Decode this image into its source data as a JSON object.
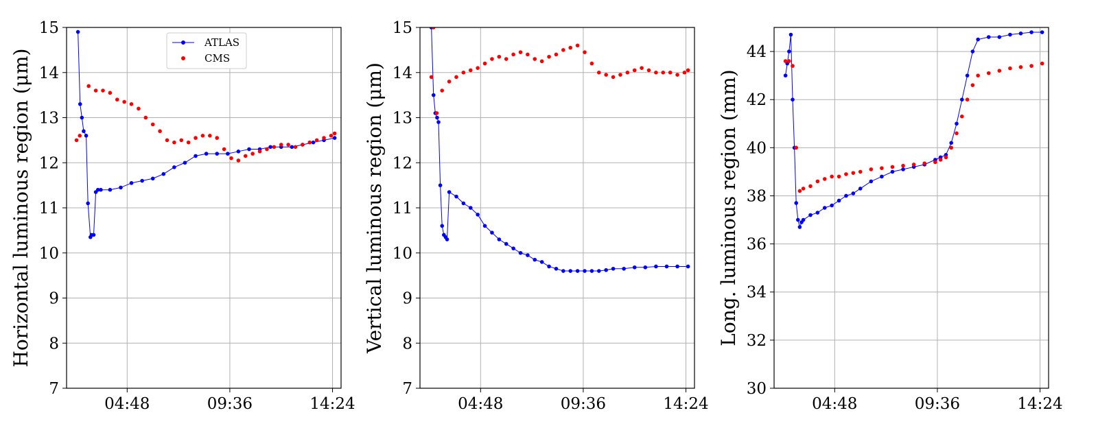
{
  "chart_data": [
    {
      "type": "scatter",
      "ylabel": "Horizontal luminous region (μm)",
      "xlim": [
        "01:58",
        "14:48"
      ],
      "ylim": [
        7,
        15
      ],
      "xticks": [
        "04:48",
        "09:36",
        "14:24"
      ],
      "yticks": [
        "7",
        "8",
        "9",
        "10",
        "11",
        "12",
        "13",
        "14",
        "15"
      ],
      "grid": true,
      "legend": {
        "placement": "top-center",
        "entries": [
          "ATLAS",
          "CMS"
        ]
      },
      "series": [
        {
          "name": "ATLAS",
          "color": "#0000ff",
          "marker": "dot",
          "line": true,
          "x": [
            "02:30",
            "02:36",
            "02:41",
            "02:46",
            "02:53",
            "02:58",
            "03:05",
            "03:08",
            "03:14",
            "03:20",
            "03:26",
            "03:34",
            "04:00",
            "04:30",
            "05:00",
            "05:30",
            "06:00",
            "06:30",
            "07:00",
            "07:30",
            "08:00",
            "08:30",
            "09:00",
            "09:30",
            "10:00",
            "10:30",
            "11:00",
            "11:30",
            "12:00",
            "12:30",
            "13:00",
            "13:30",
            "14:00",
            "14:30"
          ],
          "y": [
            14.9,
            13.3,
            13.0,
            12.7,
            12.6,
            11.1,
            10.35,
            10.4,
            10.4,
            11.35,
            11.4,
            11.4,
            11.4,
            11.45,
            11.55,
            11.6,
            11.65,
            11.75,
            11.9,
            12.0,
            12.15,
            12.2,
            12.2,
            12.2,
            12.25,
            12.3,
            12.3,
            12.35,
            12.35,
            12.35,
            12.4,
            12.45,
            12.5,
            12.55
          ]
        },
        {
          "name": "CMS",
          "color": "#ff0000",
          "marker": "dot",
          "line": false,
          "x": [
            "02:26",
            "02:35",
            "03:00",
            "03:20",
            "03:40",
            "04:00",
            "04:20",
            "04:40",
            "05:00",
            "05:20",
            "05:40",
            "06:00",
            "06:20",
            "06:40",
            "07:00",
            "07:20",
            "07:40",
            "08:00",
            "08:20",
            "08:40",
            "09:00",
            "09:20",
            "09:40",
            "10:00",
            "10:20",
            "10:40",
            "11:00",
            "11:20",
            "11:40",
            "12:00",
            "12:20",
            "12:40",
            "13:00",
            "13:20",
            "13:40",
            "14:00",
            "14:20",
            "14:30"
          ],
          "y": [
            12.5,
            12.6,
            13.7,
            13.6,
            13.6,
            13.55,
            13.4,
            13.35,
            13.3,
            13.2,
            13.0,
            12.85,
            12.7,
            12.5,
            12.45,
            12.5,
            12.45,
            12.55,
            12.6,
            12.6,
            12.55,
            12.3,
            12.1,
            12.05,
            12.15,
            12.2,
            12.25,
            12.3,
            12.35,
            12.4,
            12.4,
            12.35,
            12.4,
            12.45,
            12.5,
            12.55,
            12.6,
            12.65
          ]
        }
      ]
    },
    {
      "type": "scatter",
      "ylabel": "Vertical luminous region (μm)",
      "xlim": [
        "01:58",
        "14:48"
      ],
      "ylim": [
        7,
        15
      ],
      "xticks": [
        "04:48",
        "09:36",
        "14:24"
      ],
      "yticks": [
        "7",
        "8",
        "9",
        "10",
        "11",
        "12",
        "13",
        "14",
        "15"
      ],
      "grid": true,
      "series": [
        {
          "name": "ATLAS",
          "color": "#0000ff",
          "marker": "dot",
          "line": true,
          "x": [
            "02:30",
            "02:36",
            "02:41",
            "02:46",
            "02:50",
            "02:55",
            "03:00",
            "03:05",
            "03:10",
            "03:14",
            "03:20",
            "03:40",
            "04:00",
            "04:20",
            "04:40",
            "05:00",
            "05:20",
            "05:40",
            "06:00",
            "06:20",
            "06:40",
            "07:00",
            "07:20",
            "07:40",
            "08:00",
            "08:20",
            "08:40",
            "09:00",
            "09:20",
            "09:40",
            "10:00",
            "10:20",
            "10:40",
            "11:00",
            "11:30",
            "12:00",
            "12:30",
            "13:00",
            "13:30",
            "14:00",
            "14:30"
          ],
          "y": [
            15.0,
            13.5,
            13.1,
            13.0,
            12.9,
            11.5,
            10.6,
            10.4,
            10.35,
            10.3,
            11.35,
            11.25,
            11.1,
            11.0,
            10.85,
            10.6,
            10.45,
            10.3,
            10.2,
            10.1,
            10.0,
            9.95,
            9.85,
            9.8,
            9.7,
            9.65,
            9.6,
            9.6,
            9.6,
            9.6,
            9.6,
            9.6,
            9.62,
            9.65,
            9.65,
            9.68,
            9.68,
            9.7,
            9.7,
            9.7,
            9.7
          ]
        },
        {
          "name": "CMS",
          "color": "#ff0000",
          "marker": "dot",
          "line": false,
          "x": [
            "02:30",
            "02:36",
            "02:45",
            "03:00",
            "03:20",
            "03:40",
            "04:00",
            "04:20",
            "04:40",
            "05:00",
            "05:20",
            "05:40",
            "06:00",
            "06:20",
            "06:40",
            "07:00",
            "07:20",
            "07:40",
            "08:00",
            "08:20",
            "08:40",
            "09:00",
            "09:20",
            "09:40",
            "10:00",
            "10:20",
            "10:40",
            "11:00",
            "11:20",
            "11:40",
            "12:00",
            "12:20",
            "12:40",
            "13:00",
            "13:20",
            "13:40",
            "14:00",
            "14:20",
            "14:30"
          ],
          "y": [
            13.9,
            15.0,
            13.1,
            13.6,
            13.8,
            13.9,
            14.0,
            14.05,
            14.1,
            14.2,
            14.3,
            14.35,
            14.3,
            14.4,
            14.45,
            14.4,
            14.3,
            14.25,
            14.35,
            14.4,
            14.5,
            14.55,
            14.6,
            14.45,
            14.2,
            14.0,
            13.95,
            13.9,
            13.95,
            14.0,
            14.05,
            14.1,
            14.05,
            14.0,
            14.0,
            14.0,
            13.95,
            14.0,
            14.05
          ]
        }
      ]
    },
    {
      "type": "scatter",
      "ylabel": "Long. luminous region (mm)",
      "xlim": [
        "01:58",
        "14:48"
      ],
      "ylim": [
        30,
        45
      ],
      "xticks": [
        "04:48",
        "09:36",
        "14:24"
      ],
      "yticks": [
        "30",
        "32",
        "34",
        "36",
        "38",
        "40",
        "42",
        "44"
      ],
      "grid": true,
      "series": [
        {
          "name": "ATLAS",
          "color": "#0000ff",
          "marker": "dot",
          "line": true,
          "x": [
            "02:30",
            "02:35",
            "02:40",
            "02:45",
            "02:50",
            "02:55",
            "03:00",
            "03:05",
            "03:10",
            "03:15",
            "03:20",
            "03:40",
            "04:00",
            "04:20",
            "04:40",
            "05:00",
            "05:20",
            "05:40",
            "06:00",
            "06:30",
            "07:00",
            "07:30",
            "08:00",
            "08:30",
            "09:00",
            "09:30",
            "09:45",
            "10:00",
            "10:15",
            "10:30",
            "10:45",
            "11:00",
            "11:15",
            "11:30",
            "12:00",
            "12:30",
            "13:00",
            "13:30",
            "14:00",
            "14:30"
          ],
          "y": [
            43.0,
            43.5,
            44.0,
            44.7,
            42.0,
            40.0,
            37.7,
            37.0,
            36.7,
            36.9,
            37.0,
            37.2,
            37.3,
            37.5,
            37.6,
            37.8,
            38.0,
            38.1,
            38.3,
            38.6,
            38.8,
            39.0,
            39.1,
            39.2,
            39.3,
            39.5,
            39.6,
            39.7,
            40.2,
            41.0,
            42.0,
            43.0,
            44.0,
            44.5,
            44.6,
            44.6,
            44.7,
            44.75,
            44.8,
            44.8
          ]
        },
        {
          "name": "CMS",
          "color": "#ff0000",
          "marker": "dot",
          "line": false,
          "x": [
            "02:30",
            "02:40",
            "02:50",
            "03:00",
            "03:10",
            "03:20",
            "03:40",
            "04:00",
            "04:20",
            "04:40",
            "05:00",
            "05:20",
            "05:40",
            "06:00",
            "06:30",
            "07:00",
            "07:30",
            "08:00",
            "08:30",
            "09:00",
            "09:30",
            "09:45",
            "10:00",
            "10:15",
            "10:30",
            "10:45",
            "11:00",
            "11:15",
            "11:30",
            "12:00",
            "12:30",
            "13:00",
            "13:30",
            "14:00",
            "14:30"
          ],
          "y": [
            43.6,
            43.6,
            43.4,
            40.0,
            38.2,
            38.3,
            38.4,
            38.6,
            38.7,
            38.8,
            38.8,
            38.9,
            38.95,
            39.0,
            39.1,
            39.15,
            39.2,
            39.25,
            39.3,
            39.35,
            39.4,
            39.5,
            39.6,
            40.0,
            40.6,
            41.3,
            42.0,
            42.6,
            43.0,
            43.1,
            43.2,
            43.3,
            43.35,
            43.4,
            43.5
          ]
        }
      ]
    }
  ]
}
